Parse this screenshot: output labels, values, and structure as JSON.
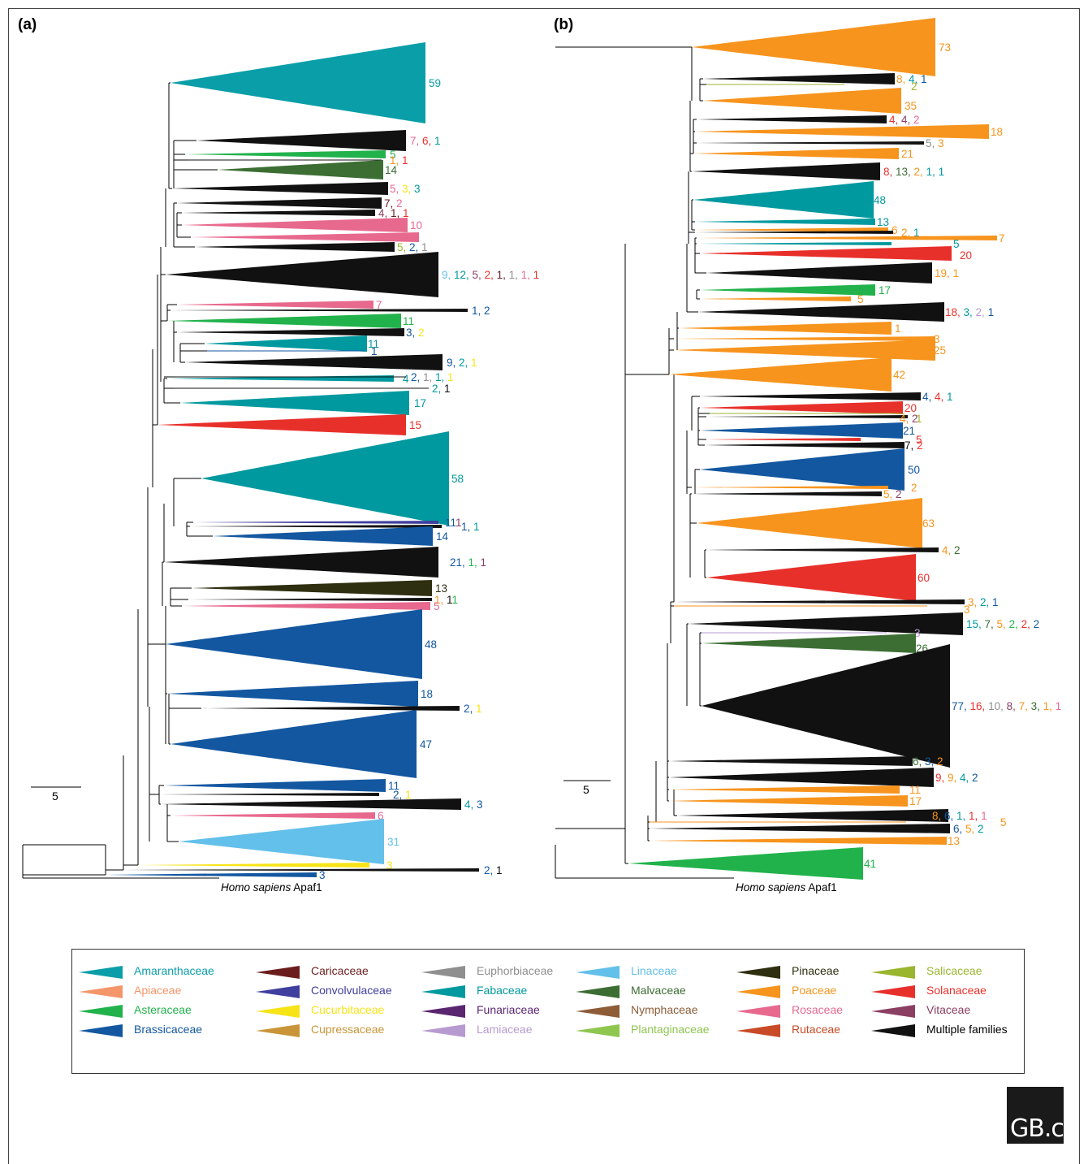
{
  "panels": {
    "a": "(a)",
    "b": "(b)"
  },
  "scale_label": "5",
  "root_label": {
    "italic": "Homo sapiens",
    "rest": " Apaf1"
  },
  "colors": {
    "Amaranthaceae": "#0a9ea8",
    "Apiaceae": "#f4956a",
    "Asteraceae": "#22b24c",
    "Brassicaceae": "#1357a0",
    "Caricaceae": "#6b1d1d",
    "Convolvulaceae": "#3f3f9e",
    "Cucurbitaceae": "#f7e417",
    "Cupressaceae": "#c99538",
    "Euphorbiaceae": "#8f8f8f",
    "Fabaceae": "#00999f",
    "Funariaceae": "#5a2670",
    "Lamiaceae": "#b79bd0",
    "Linaceae": "#63c0ea",
    "Malvaceae": "#3c6e33",
    "Nymphaceae": "#8e5c37",
    "Plantaginaceae": "#8ec64e",
    "Pinaceae": "#2e2e10",
    "Poaceae": "#f7941d",
    "Rosaceae": "#e8698e",
    "Rutaceae": "#c84a26",
    "Salicaceae": "#9ab52e",
    "Solanaceae": "#e8302b",
    "Vitaceae": "#8b3f62",
    "Multiple families": "#111111"
  },
  "legend": [
    [
      "Amaranthaceae",
      "Apiaceae",
      "Asteraceae",
      "Brassicaceae"
    ],
    [
      "Caricaceae",
      "Convolvulaceae",
      "Cucurbitaceae",
      "Cupressaceae"
    ],
    [
      "Euphorbiaceae",
      "Fabaceae",
      "Funariaceae",
      "Lamiaceae"
    ],
    [
      "Linaceae",
      "Malvaceae",
      "Nymphaceae",
      "Plantaginaceae"
    ],
    [
      "Pinaceae",
      "Poaceae",
      "Rosaceae",
      "Rutaceae"
    ],
    [
      "Salicaceae",
      "Solanaceae",
      "Vitaceae",
      "Multiple families"
    ]
  ],
  "logo": "GB.c",
  "clades_a": [
    {
      "c": "Amaranthaceae",
      "lbl": [
        [
          "59",
          "Amaranthaceae"
        ]
      ]
    },
    {
      "c": "Multiple families",
      "lbl": [
        [
          "7, ",
          "Rosaceae"
        ],
        [
          "6, ",
          "Solanaceae"
        ],
        [
          "1",
          "Fabaceae"
        ]
      ]
    },
    {
      "c": "Asteraceae",
      "lbl": [
        [
          "5",
          "Asteraceae"
        ]
      ]
    },
    {
      "c": "Multiple families",
      "lbl": [
        [
          "1, ",
          "Poaceae"
        ],
        [
          "1",
          "Solanaceae"
        ]
      ]
    },
    {
      "c": "Malvaceae",
      "lbl": [
        [
          "14",
          "Malvaceae"
        ]
      ]
    },
    {
      "c": "Multiple families",
      "lbl": [
        [
          "5, ",
          "Rosaceae"
        ],
        [
          "3, ",
          "Cucurbitaceae"
        ],
        [
          "3",
          "Fabaceae"
        ]
      ]
    },
    {
      "c": "Multiple families",
      "lbl": [
        [
          "7, ",
          "Caricaceae"
        ],
        [
          "2",
          "Rosaceae"
        ]
      ]
    },
    {
      "c": "Multiple families",
      "lbl": [
        [
          "4, ",
          "Vitaceae"
        ],
        [
          "1, ",
          "Caricaceae"
        ],
        [
          "1",
          "Solanaceae"
        ]
      ]
    },
    {
      "c": "Rosaceae",
      "lbl": [
        [
          "10",
          "Rosaceae"
        ]
      ]
    },
    {
      "c": "Rosaceae",
      "lbl": [
        [
          "6",
          "Rosaceae"
        ]
      ]
    },
    {
      "c": "Multiple families",
      "lbl": [
        [
          "5, ",
          "Salicaceae"
        ],
        [
          "2, ",
          "Brassicaceae"
        ],
        [
          "1",
          "Euphorbiaceae"
        ]
      ]
    },
    {
      "c": "Multiple families",
      "lbl": [
        [
          "9, ",
          "Linaceae"
        ],
        [
          "12, ",
          "Fabaceae"
        ],
        [
          "5, ",
          "Vitaceae"
        ],
        [
          "2, ",
          "Solanaceae"
        ],
        [
          "1, ",
          "Caricaceae"
        ],
        [
          "1, ",
          "Euphorbiaceae"
        ],
        [
          "1, ",
          "Rosaceae"
        ],
        [
          "1",
          "Solanaceae"
        ]
      ]
    },
    {
      "c": "Rosaceae",
      "lbl": [
        [
          "7",
          "Rosaceae"
        ]
      ]
    },
    {
      "c": "Multiple families",
      "lbl": [
        [
          "1, ",
          "Brassicaceae"
        ],
        [
          "2",
          "Brassicaceae"
        ]
      ]
    },
    {
      "c": "Asteraceae",
      "lbl": [
        [
          "11",
          "Asteraceae"
        ]
      ]
    },
    {
      "c": "Multiple families",
      "lbl": [
        [
          "3, ",
          "Brassicaceae"
        ],
        [
          "2",
          "Cucurbitaceae"
        ]
      ]
    },
    {
      "c": "Fabaceae",
      "lbl": [
        [
          "11",
          "Fabaceae"
        ]
      ]
    },
    {
      "c": "Brassicaceae",
      "lbl": [
        [
          "1",
          "Brassicaceae"
        ]
      ]
    },
    {
      "c": "Multiple families",
      "lbl": [
        [
          "9, ",
          "Brassicaceae"
        ],
        [
          "2, ",
          "Fabaceae"
        ],
        [
          "1",
          "Cucurbitaceae"
        ]
      ]
    },
    {
      "c": "Fabaceae",
      "lbl": [
        [
          "4",
          "Fabaceae"
        ]
      ]
    },
    {
      "c": "Multiple families",
      "lbl": [
        [
          "2, ",
          "Brassicaceae"
        ],
        [
          "1, ",
          "Euphorbiaceae"
        ],
        [
          "1, ",
          "Fabaceae"
        ],
        [
          "1",
          "Cucurbitaceae"
        ]
      ]
    },
    {
      "c": "Multiple families",
      "lbl": [
        [
          "2, ",
          "Fabaceae"
        ],
        [
          "1",
          "Multiple families"
        ]
      ]
    },
    {
      "c": "Fabaceae",
      "lbl": [
        [
          "17",
          "Fabaceae"
        ]
      ]
    },
    {
      "c": "Solanaceae",
      "lbl": [
        [
          "15",
          "Solanaceae"
        ]
      ]
    },
    {
      "c": "Fabaceae",
      "lbl": [
        [
          "58",
          "Fabaceae"
        ]
      ]
    },
    {
      "c": "Convolvulaceae",
      "lbl": [
        [
          "1",
          "Brassicaceae"
        ],
        [
          "1",
          "Brassicaceae"
        ],
        [
          "1",
          "Vitaceae"
        ]
      ]
    },
    {
      "c": "Multiple families",
      "lbl": [
        [
          "1, ",
          "Brassicaceae"
        ],
        [
          "1",
          "Fabaceae"
        ]
      ]
    },
    {
      "c": "Brassicaceae",
      "lbl": [
        [
          "14",
          "Brassicaceae"
        ]
      ]
    },
    {
      "c": "Multiple families",
      "lbl": [
        [
          "21, ",
          "Brassicaceae"
        ],
        [
          "1, ",
          "Asteraceae"
        ],
        [
          "1",
          "Vitaceae"
        ]
      ]
    },
    {
      "c": "Pinaceae",
      "lbl": [
        [
          "13",
          "Pinaceae"
        ]
      ]
    },
    {
      "c": "Multiple families",
      "lbl": [
        [
          "1, ",
          "Poaceae"
        ],
        [
          "1",
          "Multiple families"
        ],
        [
          "1",
          "Asteraceae"
        ]
      ]
    },
    {
      "c": "Rosaceae",
      "lbl": [
        [
          "5",
          "Rosaceae"
        ]
      ]
    },
    {
      "c": "Brassicaceae",
      "lbl": [
        [
          "48",
          "Brassicaceae"
        ]
      ]
    },
    {
      "c": "Brassicaceae",
      "lbl": [
        [
          "18",
          "Brassicaceae"
        ]
      ]
    },
    {
      "c": "Multiple families",
      "lbl": [
        [
          "2, ",
          "Brassicaceae"
        ],
        [
          "1",
          "Cucurbitaceae"
        ]
      ]
    },
    {
      "c": "Brassicaceae",
      "lbl": [
        [
          "47",
          "Brassicaceae"
        ]
      ]
    },
    {
      "c": "Brassicaceae",
      "lbl": [
        [
          "11",
          "Brassicaceae"
        ]
      ]
    },
    {
      "c": "Multiple families",
      "lbl": [
        [
          "2, ",
          "Brassicaceae"
        ],
        [
          "1",
          "Cucurbitaceae"
        ]
      ]
    },
    {
      "c": "Multiple families",
      "lbl": [
        [
          "4, ",
          "Fabaceae"
        ],
        [
          "3",
          "Brassicaceae"
        ]
      ]
    },
    {
      "c": "Rosaceae",
      "lbl": [
        [
          "6",
          "Rosaceae"
        ]
      ]
    },
    {
      "c": "Linaceae",
      "lbl": [
        [
          "31",
          "Linaceae"
        ]
      ]
    },
    {
      "c": "Cucurbitaceae",
      "lbl": [
        [
          "3",
          "Cucurbitaceae"
        ]
      ]
    },
    {
      "c": "Multiple families",
      "lbl": [
        [
          "2, ",
          "Brassicaceae"
        ],
        [
          "1",
          "Multiple families"
        ]
      ]
    },
    {
      "c": "Brassicaceae",
      "lbl": [
        [
          "3",
          "Brassicaceae"
        ]
      ]
    }
  ],
  "clades_b": [
    {
      "c": "Poaceae",
      "lbl": [
        [
          "73",
          "Poaceae"
        ]
      ]
    },
    {
      "c": "Multiple families",
      "lbl": [
        [
          "8, ",
          "Poaceae"
        ],
        [
          "4, ",
          "Fabaceae"
        ],
        [
          "1",
          "Brassicaceae"
        ]
      ]
    },
    {
      "c": "Salicaceae",
      "lbl": [
        [
          "2",
          "Salicaceae"
        ]
      ]
    },
    {
      "c": "Poaceae",
      "lbl": [
        [
          "35",
          "Poaceae"
        ]
      ]
    },
    {
      "c": "Multiple families",
      "lbl": [
        [
          "4, ",
          "Solanaceae"
        ],
        [
          "4, ",
          "Vitaceae"
        ],
        [
          "2",
          "Rosaceae"
        ]
      ]
    },
    {
      "c": "Poaceae",
      "lbl": [
        [
          "18",
          "Poaceae"
        ]
      ]
    },
    {
      "c": "Multiple families",
      "lbl": [
        [
          "5, ",
          "Euphorbiaceae"
        ],
        [
          "3",
          "Poaceae"
        ]
      ]
    },
    {
      "c": "Poaceae",
      "lbl": [
        [
          "21",
          "Poaceae"
        ]
      ]
    },
    {
      "c": "Multiple families",
      "lbl": [
        [
          "8, ",
          "Solanaceae"
        ],
        [
          "13, ",
          "Malvaceae"
        ],
        [
          "2, ",
          "Poaceae"
        ],
        [
          "1, ",
          "Fabaceae"
        ],
        [
          "1",
          "Fabaceae"
        ]
      ]
    },
    {
      "c": "Fabaceae",
      "lbl": [
        [
          "48",
          "Fabaceae"
        ]
      ]
    },
    {
      "c": "Fabaceae",
      "lbl": [
        [
          "13",
          "Fabaceae"
        ]
      ]
    },
    {
      "c": "Poaceae",
      "lbl": [
        [
          "6",
          "Poaceae"
        ]
      ]
    },
    {
      "c": "Multiple families",
      "lbl": [
        [
          "2, ",
          "Poaceae"
        ],
        [
          "1",
          "Fabaceae"
        ]
      ]
    },
    {
      "c": "Poaceae",
      "lbl": [
        [
          "7",
          "Poaceae"
        ]
      ]
    },
    {
      "c": "Fabaceae",
      "lbl": [
        [
          "5",
          "Fabaceae"
        ]
      ]
    },
    {
      "c": "Solanaceae",
      "lbl": [
        [
          "20",
          "Solanaceae"
        ]
      ]
    },
    {
      "c": "Multiple families",
      "lbl": [
        [
          "19, ",
          "Poaceae"
        ],
        [
          "1",
          "Poaceae"
        ]
      ]
    },
    {
      "c": "Asteraceae",
      "lbl": [
        [
          "17",
          "Asteraceae"
        ]
      ]
    },
    {
      "c": "Poaceae",
      "lbl": [
        [
          "5",
          "Poaceae"
        ]
      ]
    },
    {
      "c": "Multiple families",
      "lbl": [
        [
          "18, ",
          "Solanaceae"
        ],
        [
          "3, ",
          "Fabaceae"
        ],
        [
          "2, ",
          "Lamiaceae"
        ],
        [
          "1",
          "Brassicaceae"
        ]
      ]
    },
    {
      "c": "Poaceae",
      "lbl": [
        [
          "1",
          "Poaceae"
        ]
      ]
    },
    {
      "c": "Poaceae",
      "lbl": [
        [
          "3",
          "Poaceae"
        ]
      ]
    },
    {
      "c": "Poaceae",
      "lbl": [
        [
          "25",
          "Poaceae"
        ]
      ]
    },
    {
      "c": "Poaceae",
      "lbl": [
        [
          "42",
          "Poaceae"
        ]
      ]
    },
    {
      "c": "Multiple families",
      "lbl": [
        [
          "4, ",
          "Brassicaceae"
        ],
        [
          "4, ",
          "Solanaceae"
        ],
        [
          "1",
          "Fabaceae"
        ]
      ]
    },
    {
      "c": "Solanaceae",
      "lbl": [
        [
          "20",
          "Solanaceae"
        ]
      ]
    },
    {
      "c": "Salicaceae",
      "lbl": [
        [
          "1",
          "Salicaceae"
        ]
      ]
    },
    {
      "c": "Multiple families",
      "lbl": [
        [
          "4, ",
          "Poaceae"
        ],
        [
          "2",
          "Vitaceae"
        ]
      ]
    },
    {
      "c": "Brassicaceae",
      "lbl": [
        [
          "21",
          "Brassicaceae"
        ]
      ]
    },
    {
      "c": "Solanaceae",
      "lbl": [
        [
          "5",
          "Solanaceae"
        ]
      ]
    },
    {
      "c": "Multiple families",
      "lbl": [
        [
          "7, ",
          "Multiple families"
        ],
        [
          "2",
          "Solanaceae"
        ]
      ]
    },
    {
      "c": "Brassicaceae",
      "lbl": [
        [
          "50",
          "Brassicaceae"
        ]
      ]
    },
    {
      "c": "Poaceae",
      "lbl": [
        [
          "2",
          "Poaceae"
        ]
      ]
    },
    {
      "c": "Multiple families",
      "lbl": [
        [
          "5, ",
          "Poaceae"
        ],
        [
          "2",
          "Vitaceae"
        ]
      ]
    },
    {
      "c": "Poaceae",
      "lbl": [
        [
          "63",
          "Poaceae"
        ]
      ]
    },
    {
      "c": "Multiple families",
      "lbl": [
        [
          "4, ",
          "Poaceae"
        ],
        [
          "2",
          "Malvaceae"
        ]
      ]
    },
    {
      "c": "Solanaceae",
      "lbl": [
        [
          "60",
          "Solanaceae"
        ]
      ]
    },
    {
      "c": "Multiple families",
      "lbl": [
        [
          "3, ",
          "Poaceae"
        ],
        [
          "2, ",
          "Fabaceae"
        ],
        [
          "1",
          "Brassicaceae"
        ]
      ]
    },
    {
      "c": "Poaceae",
      "lbl": [
        [
          "3",
          "Poaceae"
        ]
      ]
    },
    {
      "c": "Multiple families",
      "lbl": [
        [
          "15, ",
          "Fabaceae"
        ],
        [
          "7, ",
          "Malvaceae"
        ],
        [
          "5, ",
          "Poaceae"
        ],
        [
          "2, ",
          "Asteraceae"
        ],
        [
          "2, ",
          "Solanaceae"
        ],
        [
          "2",
          "Brassicaceae"
        ]
      ]
    },
    {
      "c": "Lamiaceae",
      "lbl": [
        [
          "3",
          "Lamiaceae"
        ]
      ]
    },
    {
      "c": "Malvaceae",
      "lbl": [
        [
          "26",
          "Malvaceae"
        ]
      ]
    },
    {
      "c": "Multiple families",
      "lbl": [
        [
          "77, ",
          "Brassicaceae"
        ],
        [
          "16, ",
          "Solanaceae"
        ],
        [
          "10, ",
          "Euphorbiaceae"
        ],
        [
          "8, ",
          "Vitaceae"
        ],
        [
          "7, ",
          "Poaceae"
        ],
        [
          "3, ",
          "Malvaceae"
        ],
        [
          "1, ",
          "Poaceae"
        ],
        [
          "1",
          "Rosaceae"
        ]
      ]
    },
    {
      "c": "Multiple families",
      "lbl": [
        [
          "6, ",
          "Malvaceae"
        ],
        [
          "3, ",
          "Brassicaceae"
        ],
        [
          "2",
          "Poaceae"
        ]
      ]
    },
    {
      "c": "Multiple families",
      "lbl": [
        [
          "9, ",
          "Solanaceae"
        ],
        [
          "9, ",
          "Poaceae"
        ],
        [
          "4, ",
          "Fabaceae"
        ],
        [
          "2",
          "Brassicaceae"
        ]
      ]
    },
    {
      "c": "Poaceae",
      "lbl": [
        [
          "11",
          "Poaceae"
        ]
      ]
    },
    {
      "c": "Poaceae",
      "lbl": [
        [
          "17",
          "Poaceae"
        ]
      ]
    },
    {
      "c": "Multiple families",
      "lbl": [
        [
          "8, ",
          "Poaceae"
        ],
        [
          "6, ",
          "Brassicaceae"
        ],
        [
          "1, ",
          "Fabaceae"
        ],
        [
          "1, ",
          "Solanaceae"
        ],
        [
          "1",
          "Rosaceae"
        ]
      ]
    },
    {
      "c": "Poaceae",
      "lbl": [
        [
          "5",
          "Poaceae"
        ]
      ]
    },
    {
      "c": "Multiple families",
      "lbl": [
        [
          "6, ",
          "Brassicaceae"
        ],
        [
          "5, ",
          "Poaceae"
        ],
        [
          "2",
          "Fabaceae"
        ]
      ]
    },
    {
      "c": "Poaceae",
      "lbl": [
        [
          "13",
          "Poaceae"
        ]
      ]
    },
    {
      "c": "Asteraceae",
      "lbl": [
        [
          "41",
          "Asteraceae"
        ]
      ]
    }
  ]
}
